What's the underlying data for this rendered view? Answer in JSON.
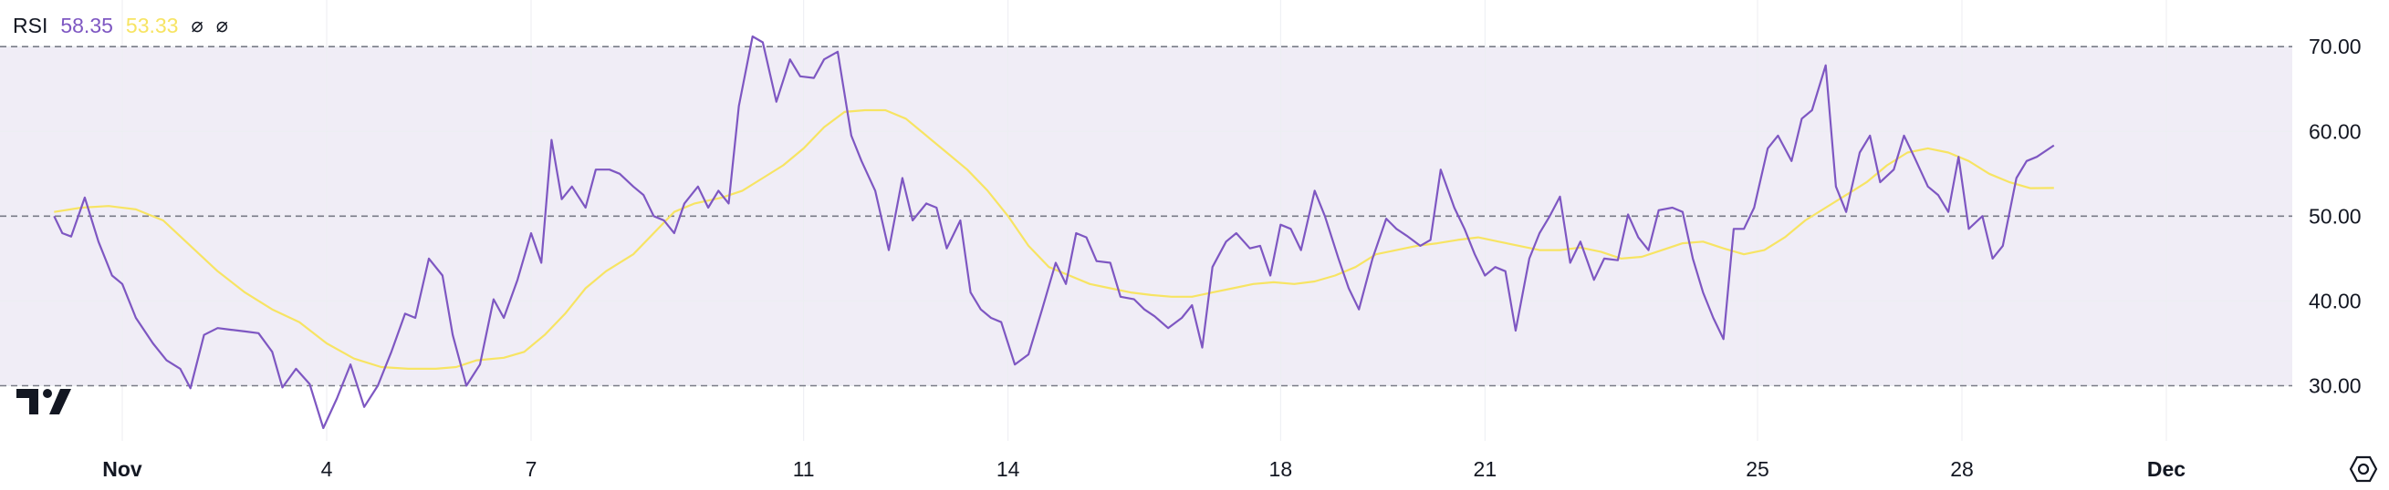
{
  "legend": {
    "name": "RSI",
    "value_rsi": "58.35",
    "value_ma": "53.33",
    "icon_hidden_1": "⌀",
    "icon_hidden_2": "⌀"
  },
  "colors": {
    "rsi": "#7e57c2",
    "ma": "#f7e463",
    "band": "#f0edf6",
    "grid": "#eceef2",
    "axis_text": "#131722",
    "dash": "#787b86"
  },
  "icons": {
    "logo": "tradingview-logo-icon",
    "settings": "settings-gear-icon"
  },
  "chart_data": {
    "type": "line",
    "y_axis": {
      "ticks": [
        "70.00",
        "60.00",
        "50.00",
        "40.00",
        "30.00"
      ],
      "ylim": [
        23.5,
        75.5
      ]
    },
    "levels": {
      "upper": 70,
      "middle": 50,
      "lower": 30
    },
    "x_axis": {
      "ticks": [
        {
          "label": "Nov",
          "day": 1,
          "bold": true
        },
        {
          "label": "4",
          "day": 4,
          "bold": false
        },
        {
          "label": "7",
          "day": 7,
          "bold": false
        },
        {
          "label": "11",
          "day": 11,
          "bold": false
        },
        {
          "label": "14",
          "day": 14,
          "bold": false
        },
        {
          "label": "18",
          "day": 18,
          "bold": false
        },
        {
          "label": "21",
          "day": 21,
          "bold": false
        },
        {
          "label": "25",
          "day": 25,
          "bold": false
        },
        {
          "label": "28",
          "day": 28,
          "bold": false
        },
        {
          "label": "Dec",
          "day": 31,
          "bold": true
        }
      ]
    },
    "series": [
      {
        "name": "RSI",
        "color": "#7e57c2",
        "points": [
          [
            0.0,
            50.0
          ],
          [
            0.12,
            48.0
          ],
          [
            0.25,
            47.6
          ],
          [
            0.45,
            52.2
          ],
          [
            0.65,
            47.0
          ],
          [
            0.85,
            43.0
          ],
          [
            1.0,
            42.0
          ],
          [
            1.2,
            38.0
          ],
          [
            1.45,
            35.0
          ],
          [
            1.65,
            33.0
          ],
          [
            1.85,
            32.0
          ],
          [
            2.0,
            29.7
          ],
          [
            2.2,
            36.0
          ],
          [
            2.4,
            36.8
          ],
          [
            2.6,
            36.6
          ],
          [
            2.8,
            36.4
          ],
          [
            3.0,
            36.2
          ],
          [
            3.2,
            34.0
          ],
          [
            3.35,
            29.8
          ],
          [
            3.55,
            32.0
          ],
          [
            3.75,
            30.2
          ],
          [
            3.95,
            25.0
          ],
          [
            4.15,
            28.5
          ],
          [
            4.35,
            32.5
          ],
          [
            4.55,
            27.5
          ],
          [
            4.75,
            30.0
          ],
          [
            4.95,
            34.0
          ],
          [
            5.15,
            38.5
          ],
          [
            5.3,
            38.0
          ],
          [
            5.5,
            45.0
          ],
          [
            5.7,
            43.0
          ],
          [
            5.85,
            36.0
          ],
          [
            6.05,
            30.0
          ],
          [
            6.25,
            32.5
          ],
          [
            6.45,
            40.2
          ],
          [
            6.6,
            38.0
          ],
          [
            6.8,
            42.5
          ],
          [
            7.0,
            48.0
          ],
          [
            7.15,
            44.5
          ],
          [
            7.3,
            59.0
          ],
          [
            7.45,
            52.0
          ],
          [
            7.6,
            53.5
          ],
          [
            7.8,
            51.0
          ],
          [
            7.95,
            55.5
          ],
          [
            8.15,
            55.5
          ],
          [
            8.3,
            55.0
          ],
          [
            8.5,
            53.5
          ],
          [
            8.65,
            52.5
          ],
          [
            8.8,
            50.0
          ],
          [
            8.95,
            49.5
          ],
          [
            9.1,
            48.0
          ],
          [
            9.25,
            51.5
          ],
          [
            9.45,
            53.5
          ],
          [
            9.6,
            51.0
          ],
          [
            9.75,
            53.0
          ],
          [
            9.9,
            51.5
          ],
          [
            10.05,
            63.0
          ],
          [
            10.25,
            71.2
          ],
          [
            10.4,
            70.5
          ],
          [
            10.6,
            63.5
          ],
          [
            10.8,
            68.5
          ],
          [
            10.95,
            66.5
          ],
          [
            11.15,
            66.3
          ],
          [
            11.3,
            68.5
          ],
          [
            11.5,
            69.4
          ],
          [
            11.7,
            59.5
          ],
          [
            11.85,
            56.5
          ],
          [
            12.05,
            53.0
          ],
          [
            12.25,
            46.0
          ],
          [
            12.45,
            54.5
          ],
          [
            12.6,
            49.5
          ],
          [
            12.8,
            51.5
          ],
          [
            12.95,
            51.0
          ],
          [
            13.1,
            46.2
          ],
          [
            13.3,
            49.5
          ],
          [
            13.45,
            41.0
          ],
          [
            13.6,
            39.0
          ],
          [
            13.75,
            38.0
          ],
          [
            13.9,
            37.5
          ],
          [
            14.1,
            32.5
          ],
          [
            14.3,
            33.7
          ],
          [
            14.5,
            39.0
          ],
          [
            14.7,
            44.5
          ],
          [
            14.85,
            42.0
          ],
          [
            15.0,
            48.0
          ],
          [
            15.15,
            47.5
          ],
          [
            15.3,
            44.7
          ],
          [
            15.5,
            44.5
          ],
          [
            15.65,
            40.5
          ],
          [
            15.85,
            40.2
          ],
          [
            16.0,
            39.0
          ],
          [
            16.15,
            38.2
          ],
          [
            16.35,
            36.8
          ],
          [
            16.55,
            38.0
          ],
          [
            16.7,
            39.5
          ],
          [
            16.85,
            34.5
          ],
          [
            17.0,
            44.0
          ],
          [
            17.2,
            47.0
          ],
          [
            17.35,
            48.0
          ],
          [
            17.55,
            46.2
          ],
          [
            17.7,
            46.5
          ],
          [
            17.85,
            43.0
          ],
          [
            18.0,
            49.0
          ],
          [
            18.15,
            48.5
          ],
          [
            18.3,
            46.0
          ],
          [
            18.5,
            53.0
          ],
          [
            18.65,
            50.0
          ],
          [
            18.85,
            45.0
          ],
          [
            19.0,
            41.5
          ],
          [
            19.15,
            39.0
          ],
          [
            19.35,
            45.0
          ],
          [
            19.55,
            49.7
          ],
          [
            19.7,
            48.5
          ],
          [
            19.85,
            47.7
          ],
          [
            20.05,
            46.5
          ],
          [
            20.2,
            47.2
          ],
          [
            20.35,
            55.5
          ],
          [
            20.55,
            51.0
          ],
          [
            20.7,
            48.5
          ],
          [
            20.85,
            45.5
          ],
          [
            21.0,
            43.0
          ],
          [
            21.15,
            44.0
          ],
          [
            21.3,
            43.5
          ],
          [
            21.45,
            36.5
          ],
          [
            21.65,
            45.0
          ],
          [
            21.8,
            48.0
          ],
          [
            21.95,
            50.0
          ],
          [
            22.1,
            52.3
          ],
          [
            22.25,
            44.5
          ],
          [
            22.4,
            47.0
          ],
          [
            22.6,
            42.5
          ],
          [
            22.75,
            45.0
          ],
          [
            22.95,
            44.8
          ],
          [
            23.1,
            50.2
          ],
          [
            23.25,
            47.5
          ],
          [
            23.4,
            46.0
          ],
          [
            23.55,
            50.7
          ],
          [
            23.75,
            51.0
          ],
          [
            23.9,
            50.5
          ],
          [
            24.05,
            45.0
          ],
          [
            24.2,
            41.0
          ],
          [
            24.35,
            38.0
          ],
          [
            24.5,
            35.5
          ],
          [
            24.65,
            48.5
          ],
          [
            24.8,
            48.5
          ],
          [
            24.95,
            51.0
          ],
          [
            25.15,
            58.0
          ],
          [
            25.3,
            59.5
          ],
          [
            25.5,
            56.5
          ],
          [
            25.65,
            61.5
          ],
          [
            25.8,
            62.5
          ],
          [
            26.0,
            67.8
          ],
          [
            26.15,
            53.5
          ],
          [
            26.3,
            50.5
          ],
          [
            26.5,
            57.5
          ],
          [
            26.65,
            59.5
          ],
          [
            26.8,
            54.0
          ],
          [
            27.0,
            55.5
          ],
          [
            27.15,
            59.5
          ],
          [
            27.3,
            57.0
          ],
          [
            27.5,
            53.5
          ],
          [
            27.65,
            52.5
          ],
          [
            27.8,
            50.5
          ],
          [
            27.95,
            57.0
          ],
          [
            28.1,
            48.5
          ],
          [
            28.3,
            50.0
          ],
          [
            28.45,
            45.0
          ],
          [
            28.6,
            46.5
          ],
          [
            28.8,
            54.5
          ],
          [
            28.95,
            56.5
          ],
          [
            29.1,
            57.0
          ],
          [
            29.35,
            58.35
          ]
        ]
      },
      {
        "name": "MA",
        "color": "#f7e463",
        "points": [
          [
            0.0,
            50.5
          ],
          [
            0.4,
            51.0
          ],
          [
            0.8,
            51.2
          ],
          [
            1.2,
            50.8
          ],
          [
            1.6,
            49.5
          ],
          [
            2.0,
            46.5
          ],
          [
            2.4,
            43.5
          ],
          [
            2.8,
            41.0
          ],
          [
            3.2,
            39.0
          ],
          [
            3.6,
            37.5
          ],
          [
            4.0,
            35.0
          ],
          [
            4.4,
            33.2
          ],
          [
            4.8,
            32.2
          ],
          [
            5.2,
            32.0
          ],
          [
            5.6,
            32.0
          ],
          [
            5.9,
            32.2
          ],
          [
            6.2,
            33.0
          ],
          [
            6.6,
            33.3
          ],
          [
            6.9,
            34.0
          ],
          [
            7.2,
            36.0
          ],
          [
            7.5,
            38.5
          ],
          [
            7.8,
            41.5
          ],
          [
            8.1,
            43.5
          ],
          [
            8.5,
            45.5
          ],
          [
            8.8,
            48.0
          ],
          [
            9.1,
            50.5
          ],
          [
            9.4,
            51.5
          ],
          [
            9.8,
            52.2
          ],
          [
            10.1,
            53.0
          ],
          [
            10.4,
            54.5
          ],
          [
            10.7,
            56.0
          ],
          [
            11.0,
            58.0
          ],
          [
            11.3,
            60.5
          ],
          [
            11.6,
            62.3
          ],
          [
            11.9,
            62.5
          ],
          [
            12.2,
            62.5
          ],
          [
            12.5,
            61.5
          ],
          [
            12.8,
            59.5
          ],
          [
            13.1,
            57.5
          ],
          [
            13.4,
            55.5
          ],
          [
            13.7,
            53.0
          ],
          [
            14.0,
            50.0
          ],
          [
            14.3,
            46.5
          ],
          [
            14.6,
            44.0
          ],
          [
            14.9,
            43.0
          ],
          [
            15.2,
            42.0
          ],
          [
            15.5,
            41.5
          ],
          [
            15.8,
            41.0
          ],
          [
            16.1,
            40.7
          ],
          [
            16.4,
            40.5
          ],
          [
            16.7,
            40.5
          ],
          [
            17.0,
            41.0
          ],
          [
            17.3,
            41.5
          ],
          [
            17.6,
            42.0
          ],
          [
            17.9,
            42.2
          ],
          [
            18.2,
            42.0
          ],
          [
            18.5,
            42.3
          ],
          [
            18.8,
            43.0
          ],
          [
            19.1,
            44.0
          ],
          [
            19.4,
            45.5
          ],
          [
            19.7,
            46.0
          ],
          [
            20.0,
            46.5
          ],
          [
            20.3,
            46.8
          ],
          [
            20.6,
            47.2
          ],
          [
            20.9,
            47.5
          ],
          [
            21.2,
            47.0
          ],
          [
            21.5,
            46.5
          ],
          [
            21.8,
            46.0
          ],
          [
            22.1,
            46.0
          ],
          [
            22.4,
            46.3
          ],
          [
            22.7,
            45.8
          ],
          [
            23.0,
            45.0
          ],
          [
            23.3,
            45.2
          ],
          [
            23.6,
            46.0
          ],
          [
            23.9,
            46.8
          ],
          [
            24.2,
            47.0
          ],
          [
            24.5,
            46.2
          ],
          [
            24.8,
            45.5
          ],
          [
            25.1,
            46.0
          ],
          [
            25.4,
            47.5
          ],
          [
            25.7,
            49.5
          ],
          [
            26.0,
            51.0
          ],
          [
            26.3,
            52.5
          ],
          [
            26.6,
            54.0
          ],
          [
            26.9,
            56.0
          ],
          [
            27.2,
            57.5
          ],
          [
            27.5,
            58.0
          ],
          [
            27.8,
            57.5
          ],
          [
            28.1,
            56.5
          ],
          [
            28.4,
            55.0
          ],
          [
            28.7,
            54.0
          ],
          [
            29.0,
            53.3
          ],
          [
            29.35,
            53.33
          ]
        ]
      }
    ]
  }
}
